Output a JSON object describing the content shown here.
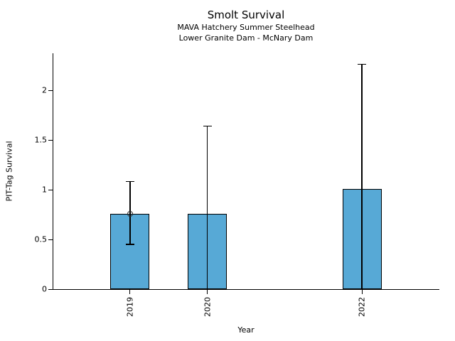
{
  "chart_data": {
    "type": "bar",
    "title": "Smolt Survival",
    "subtitle1": "MAVA Hatchery Summer Steelhead",
    "subtitle2": "Lower Granite Dam - McNary Dam",
    "xlabel": "Year",
    "ylabel": "PIT-Tag Survival",
    "categories": [
      "2019",
      "2020",
      "2022"
    ],
    "x": [
      2019,
      2020,
      2022
    ],
    "values": [
      0.76,
      0.76,
      1.01
    ],
    "error_low": [
      0.45,
      0,
      0
    ],
    "error_high": [
      1.08,
      1.64,
      2.26
    ],
    "point_markers": [
      {
        "x": 2019,
        "y": 0.76
      }
    ],
    "xlim": [
      2018,
      2023
    ],
    "ylim": [
      0,
      2.37
    ],
    "yticks": [
      0,
      0.5,
      1,
      1.5,
      2
    ],
    "ytick_labels": [
      "0",
      "0.5",
      "1",
      "1.5",
      "2"
    ],
    "bar_color": "#57A9D6",
    "bar_edge_color": "#000000",
    "axis_color": "#000000",
    "grid": false,
    "legend": null
  }
}
